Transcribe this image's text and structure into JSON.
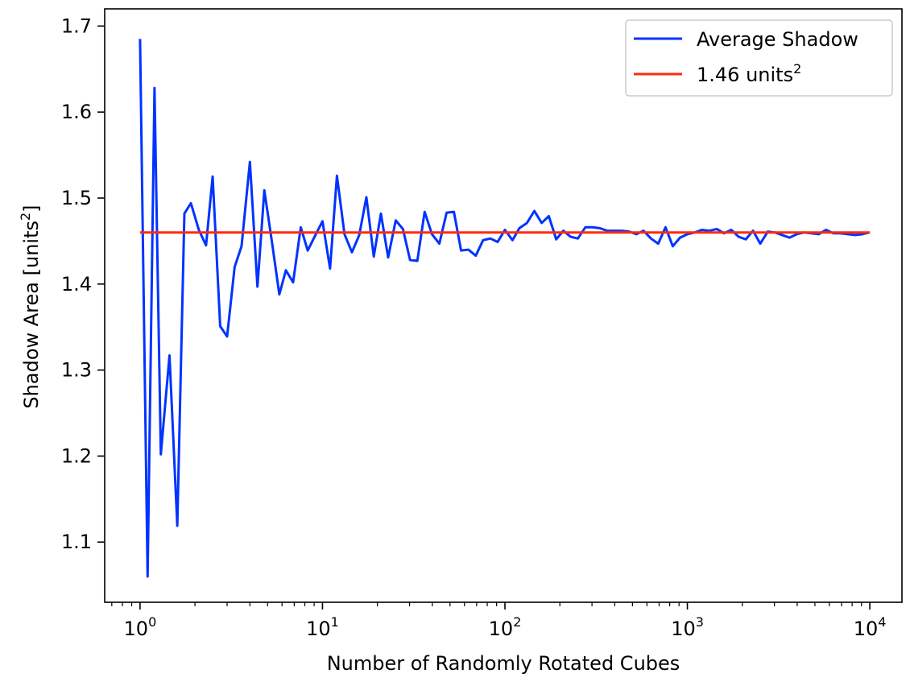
{
  "chart_data": {
    "type": "line",
    "title": "",
    "xlabel": "Number of Randomly Rotated Cubes",
    "ylabel": {
      "base": "Shadow Area [units",
      "sup": "2",
      "tail": "]"
    },
    "xscale": "log",
    "xlim": [
      0.64,
      15000
    ],
    "ylim": [
      1.03,
      1.72
    ],
    "grid": false,
    "legend_position": "top-right",
    "x_ticks": [
      {
        "value": 1,
        "base": "10",
        "exp": "0"
      },
      {
        "value": 10,
        "base": "10",
        "exp": "1"
      },
      {
        "value": 100,
        "base": "10",
        "exp": "2"
      },
      {
        "value": 1000,
        "base": "10",
        "exp": "3"
      },
      {
        "value": 10000,
        "base": "10",
        "exp": "4"
      }
    ],
    "y_ticks": [
      {
        "value": 1.1,
        "label": "1.1"
      },
      {
        "value": 1.2,
        "label": "1.2"
      },
      {
        "value": 1.3,
        "label": "1.3"
      },
      {
        "value": 1.4,
        "label": "1.4"
      },
      {
        "value": 1.5,
        "label": "1.5"
      },
      {
        "value": 1.6,
        "label": "1.6"
      },
      {
        "value": 1.7,
        "label": "1.7"
      }
    ],
    "series": [
      {
        "name": "Average Shadow",
        "color": "#0033ff",
        "x": [
          1,
          1.1,
          1.2,
          1.3,
          1.45,
          1.6,
          1.75,
          1.9,
          2.1,
          2.3,
          2.5,
          2.75,
          3.0,
          3.3,
          3.6,
          4.0,
          4.4,
          4.8,
          5.3,
          5.8,
          6.3,
          6.9,
          7.6,
          8.3,
          9.1,
          10.0,
          11.0,
          12.0,
          13.2,
          14.5,
          15.9,
          17.4,
          19.1,
          20.9,
          22.9,
          25.2,
          27.6,
          30.2,
          33.1,
          36.3,
          39.8,
          43.7,
          47.9,
          52.5,
          57.5,
          63.1,
          69.2,
          75.9,
          83.2,
          91.2,
          100,
          110,
          120,
          132,
          145,
          159,
          174,
          191,
          209,
          229,
          251,
          276,
          302,
          331,
          363,
          398,
          437,
          479,
          525,
          575,
          631,
          692,
          759,
          832,
          912,
          1000,
          1100,
          1200,
          1320,
          1450,
          1590,
          1740,
          1910,
          2090,
          2290,
          2510,
          2760,
          3020,
          3310,
          3630,
          3980,
          4370,
          4790,
          5250,
          5750,
          6310,
          6920,
          7590,
          8320,
          9120,
          10000
        ],
        "y": [
          1.685,
          1.06,
          1.628,
          1.202,
          1.317,
          1.119,
          1.482,
          1.494,
          1.463,
          1.445,
          1.525,
          1.351,
          1.339,
          1.42,
          1.444,
          1.542,
          1.397,
          1.509,
          1.447,
          1.388,
          1.416,
          1.402,
          1.466,
          1.439,
          1.456,
          1.473,
          1.418,
          1.526,
          1.458,
          1.437,
          1.457,
          1.501,
          1.432,
          1.482,
          1.431,
          1.474,
          1.464,
          1.428,
          1.427,
          1.484,
          1.458,
          1.447,
          1.483,
          1.484,
          1.439,
          1.44,
          1.433,
          1.451,
          1.453,
          1.449,
          1.463,
          1.451,
          1.465,
          1.471,
          1.485,
          1.471,
          1.479,
          1.452,
          1.462,
          1.455,
          1.453,
          1.466,
          1.466,
          1.465,
          1.462,
          1.462,
          1.462,
          1.461,
          1.458,
          1.462,
          1.453,
          1.447,
          1.466,
          1.444,
          1.454,
          1.458,
          1.46,
          1.463,
          1.462,
          1.464,
          1.459,
          1.463,
          1.455,
          1.452,
          1.462,
          1.447,
          1.461,
          1.46,
          1.457,
          1.454,
          1.458,
          1.46,
          1.459,
          1.458,
          1.463,
          1.459,
          1.459,
          1.458,
          1.457,
          1.458,
          1.46
        ]
      },
      {
        "name": {
          "base": "1.46 units",
          "sup": "2"
        },
        "color": "#ff2a10",
        "x": [
          1,
          10000
        ],
        "y": [
          1.46,
          1.46
        ]
      }
    ]
  }
}
